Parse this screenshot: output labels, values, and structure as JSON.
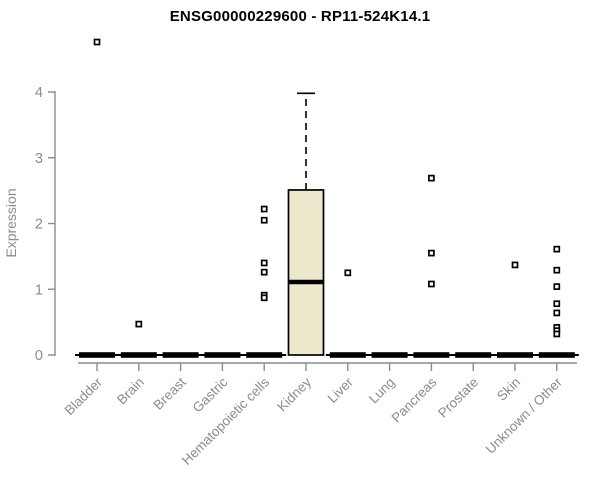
{
  "chart": {
    "title": "ENSG00000229600 - RP11-524K14.1",
    "ylabel": "Expression"
  },
  "chart_data": {
    "type": "boxplot",
    "title": "ENSG00000229600 - RP11-524K14.1",
    "xlabel": "",
    "ylabel": "Expression",
    "ylim": [
      0,
      4
    ],
    "yticks": [
      0,
      1,
      2,
      3,
      4
    ],
    "grid": false,
    "legend": "none",
    "categories": [
      "Bladder",
      "Brain",
      "Breast",
      "Gastric",
      "Hematopoietic cells",
      "Kidney",
      "Liver",
      "Lung",
      "Pancreas",
      "Prostate",
      "Skin",
      "Unknown / Other"
    ],
    "boxes": [
      {
        "category": "Bladder",
        "low": 0,
        "q1": 0,
        "median": 0,
        "q3": 0,
        "high": 0,
        "outliers": [
          4.76
        ]
      },
      {
        "category": "Brain",
        "low": 0,
        "q1": 0,
        "median": 0,
        "q3": 0,
        "high": 0,
        "outliers": [
          0.47
        ]
      },
      {
        "category": "Breast",
        "low": 0,
        "q1": 0,
        "median": 0,
        "q3": 0,
        "high": 0,
        "outliers": []
      },
      {
        "category": "Gastric",
        "low": 0,
        "q1": 0,
        "median": 0,
        "q3": 0,
        "high": 0,
        "outliers": []
      },
      {
        "category": "Hematopoietic cells",
        "low": 0,
        "q1": 0,
        "median": 0,
        "q3": 0,
        "high": 0,
        "outliers": [
          2.22,
          2.05,
          1.4,
          1.26,
          0.91,
          0.87
        ]
      },
      {
        "category": "Kidney",
        "low": 0,
        "q1": 0,
        "median": 1.11,
        "q3": 2.51,
        "high": 3.98,
        "outliers": []
      },
      {
        "category": "Liver",
        "low": 0,
        "q1": 0,
        "median": 0,
        "q3": 0,
        "high": 0,
        "outliers": [
          1.25
        ]
      },
      {
        "category": "Lung",
        "low": 0,
        "q1": 0,
        "median": 0,
        "q3": 0,
        "high": 0,
        "outliers": []
      },
      {
        "category": "Pancreas",
        "low": 0,
        "q1": 0,
        "median": 0,
        "q3": 0,
        "high": 0,
        "outliers": [
          2.69,
          1.55,
          1.08
        ]
      },
      {
        "category": "Prostate",
        "low": 0,
        "q1": 0,
        "median": 0,
        "q3": 0,
        "high": 0,
        "outliers": []
      },
      {
        "category": "Skin",
        "low": 0,
        "q1": 0,
        "median": 0,
        "q3": 0,
        "high": 0,
        "outliers": [
          1.37
        ]
      },
      {
        "category": "Unknown / Other",
        "low": 0,
        "q1": 0,
        "median": 0,
        "q3": 0,
        "high": 0,
        "outliers": [
          1.61,
          1.29,
          1.04,
          0.78,
          0.64,
          0.42,
          0.37,
          0.32
        ]
      }
    ]
  },
  "colors": {
    "box_fill": "#EDE8CC",
    "box_stroke": "#000000",
    "median": "#000000",
    "outlier_stroke": "#000000",
    "axis": "#8c8c8c",
    "tick_text": "#8c8c8c",
    "title_text": "#000000",
    "background": "#ffffff"
  }
}
